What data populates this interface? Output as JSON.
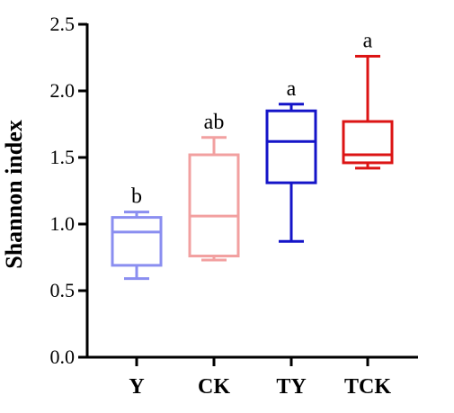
{
  "chart_data": {
    "type": "box",
    "ylabel": "Shannon index",
    "xlabel": "",
    "ylim": [
      0,
      2.5
    ],
    "y_ticks": [
      "0.0",
      "0.5",
      "1.0",
      "1.5",
      "2.0",
      "2.5"
    ],
    "categories": [
      "Y",
      "CK",
      "TY",
      "TCK"
    ],
    "series": [
      {
        "category": "Y",
        "min": 0.59,
        "q1": 0.69,
        "median": 0.94,
        "q3": 1.05,
        "max": 1.09,
        "significance": "b",
        "color": "#8a8ef0"
      },
      {
        "category": "CK",
        "min": 0.73,
        "q1": 0.76,
        "median": 1.06,
        "q3": 1.52,
        "max": 1.65,
        "significance": "ab",
        "color": "#f2a0a0"
      },
      {
        "category": "TY",
        "min": 0.87,
        "q1": 1.31,
        "median": 1.62,
        "q3": 1.85,
        "max": 1.9,
        "significance": "a",
        "color": "#1414c8"
      },
      {
        "category": "TCK",
        "min": 1.42,
        "q1": 1.46,
        "median": 1.52,
        "q3": 1.77,
        "max": 2.26,
        "significance": "a",
        "color": "#dc1414"
      }
    ],
    "grid": false,
    "legend": "none"
  }
}
